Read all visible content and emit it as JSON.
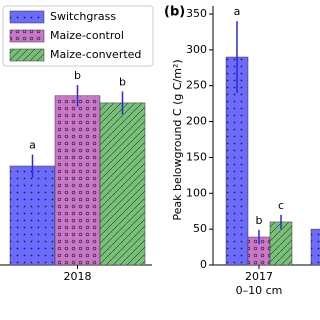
{
  "chart_data": [
    {
      "type": "bar",
      "categories": [
        "2018"
      ],
      "ylim": [
        0,
        350
      ],
      "legend": "upper left",
      "series": [
        {
          "name": "Switchgrass",
          "color": "#6b6bff",
          "hatch": ".",
          "values": [
            138
          ],
          "errors": [
            16
          ],
          "letters": [
            "a"
          ]
        },
        {
          "name": "Maize-control",
          "color": "#cc77cc",
          "hatch": "o",
          "values": [
            236
          ],
          "errors": [
            15
          ],
          "letters": [
            "b"
          ]
        },
        {
          "name": "Maize-converted",
          "color": "#77c077",
          "hatch": "/",
          "values": [
            226
          ],
          "errors": [
            16
          ],
          "letters": [
            "b"
          ]
        }
      ]
    },
    {
      "type": "bar",
      "panel_label": "(b)",
      "y_label": "Peak belowground C (g C/m²)",
      "categories": [
        "2017",
        null
      ],
      "category_sublabels": [
        "0–10 cm",
        null
      ],
      "ylim": [
        0,
        350
      ],
      "yticks": [
        0,
        50,
        100,
        150,
        200,
        250,
        300,
        350
      ],
      "series": [
        {
          "name": "Switchgrass",
          "color": "#6b6bff",
          "hatch": ".",
          "values": [
            290,
            50
          ],
          "errors": [
            50,
            null
          ],
          "letters": [
            "a",
            null
          ]
        },
        {
          "name": "Maize-control",
          "color": "#cc77cc",
          "hatch": "o",
          "values": [
            39,
            null
          ],
          "errors": [
            10,
            null
          ],
          "letters": [
            "b",
            null
          ]
        },
        {
          "name": "Maize-converted",
          "color": "#77c077",
          "hatch": "/",
          "values": [
            60,
            null
          ],
          "errors": [
            10,
            null
          ],
          "letters": [
            "c",
            null
          ]
        }
      ]
    }
  ]
}
